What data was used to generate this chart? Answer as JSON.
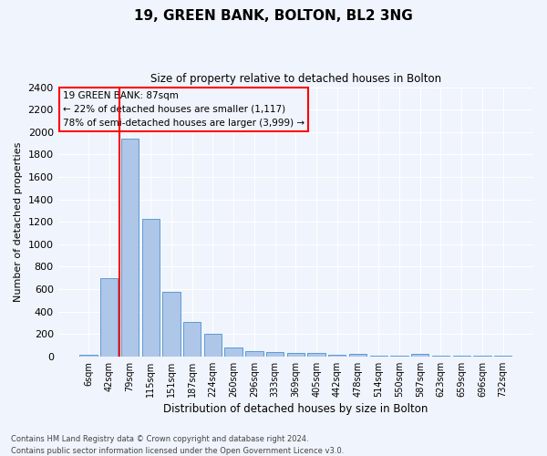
{
  "title1": "19, GREEN BANK, BOLTON, BL2 3NG",
  "title2": "Size of property relative to detached houses in Bolton",
  "xlabel": "Distribution of detached houses by size in Bolton",
  "ylabel": "Number of detached properties",
  "categories": [
    "6sqm",
    "42sqm",
    "79sqm",
    "115sqm",
    "151sqm",
    "187sqm",
    "224sqm",
    "260sqm",
    "296sqm",
    "333sqm",
    "369sqm",
    "405sqm",
    "442sqm",
    "478sqm",
    "514sqm",
    "550sqm",
    "587sqm",
    "623sqm",
    "659sqm",
    "696sqm",
    "732sqm"
  ],
  "values": [
    15,
    700,
    1940,
    1225,
    575,
    305,
    200,
    80,
    47,
    38,
    32,
    28,
    18,
    22,
    5,
    5,
    20,
    5,
    5,
    5,
    5
  ],
  "bar_color": "#aec6e8",
  "bar_edge_color": "#5b9bd5",
  "red_line_xindex": 2,
  "annotation_title": "19 GREEN BANK: 87sqm",
  "annotation_line1": "← 22% of detached houses are smaller (1,117)",
  "annotation_line2": "78% of semi-detached houses are larger (3,999) →",
  "ylim_max": 2400,
  "yticks": [
    0,
    200,
    400,
    600,
    800,
    1000,
    1200,
    1400,
    1600,
    1800,
    2000,
    2200,
    2400
  ],
  "footnote1": "Contains HM Land Registry data © Crown copyright and database right 2024.",
  "footnote2": "Contains public sector information licensed under the Open Government Licence v3.0.",
  "bg_color": "#f0f4fc",
  "grid_color": "#ffffff"
}
